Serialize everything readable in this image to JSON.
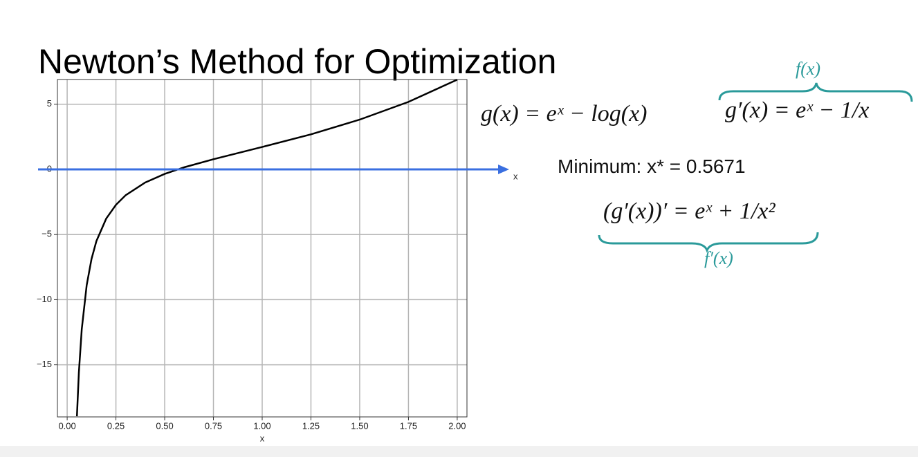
{
  "slide": {
    "title": "Newton’s Method for Optimization",
    "equations": {
      "g": "g(x) = eˣ − log(x)",
      "g_prime": "g′(x) = eˣ − 1/x",
      "f_label": "f(x)",
      "minimum": "Minimum: x* = 0.5671",
      "g_second": "(g′(x))′ = eˣ + 1/x²",
      "f_prime_label": "f′(x)"
    }
  },
  "chart_data": {
    "type": "line",
    "x_label": "x",
    "arrow_label": "x",
    "color": "#000000",
    "arrow_color": "#3a6fe0",
    "grid": true,
    "x": [
      0.05,
      0.06,
      0.075,
      0.1,
      0.125,
      0.15,
      0.2,
      0.25,
      0.3,
      0.4,
      0.5,
      0.6,
      0.75,
      1.0,
      1.25,
      1.5,
      1.75,
      2.0
    ],
    "values": [
      -18.95,
      -15.6,
      -12.26,
      -8.89,
      -6.87,
      -5.5,
      -3.78,
      -2.72,
      -1.98,
      -1.01,
      -0.35,
      0.16,
      0.78,
      1.72,
      2.69,
      3.82,
      5.18,
      6.89
    ],
    "xlim": [
      -0.05,
      2.05
    ],
    "ylim": [
      -19,
      6.9
    ],
    "xticks": [
      {
        "value": 0,
        "label": "0.00"
      },
      {
        "value": 0.25,
        "label": "0.25"
      },
      {
        "value": 0.5,
        "label": "0.50"
      },
      {
        "value": 0.75,
        "label": "0.75"
      },
      {
        "value": 1,
        "label": "1.00"
      },
      {
        "value": 1.25,
        "label": "1.25"
      },
      {
        "value": 1.5,
        "label": "1.50"
      },
      {
        "value": 1.75,
        "label": "1.75"
      },
      {
        "value": 2,
        "label": "2.00"
      }
    ],
    "yticks": [
      {
        "value": -15,
        "label": "−15"
      },
      {
        "value": -10,
        "label": "−10"
      },
      {
        "value": -5,
        "label": "−5"
      },
      0,
      5
    ]
  }
}
